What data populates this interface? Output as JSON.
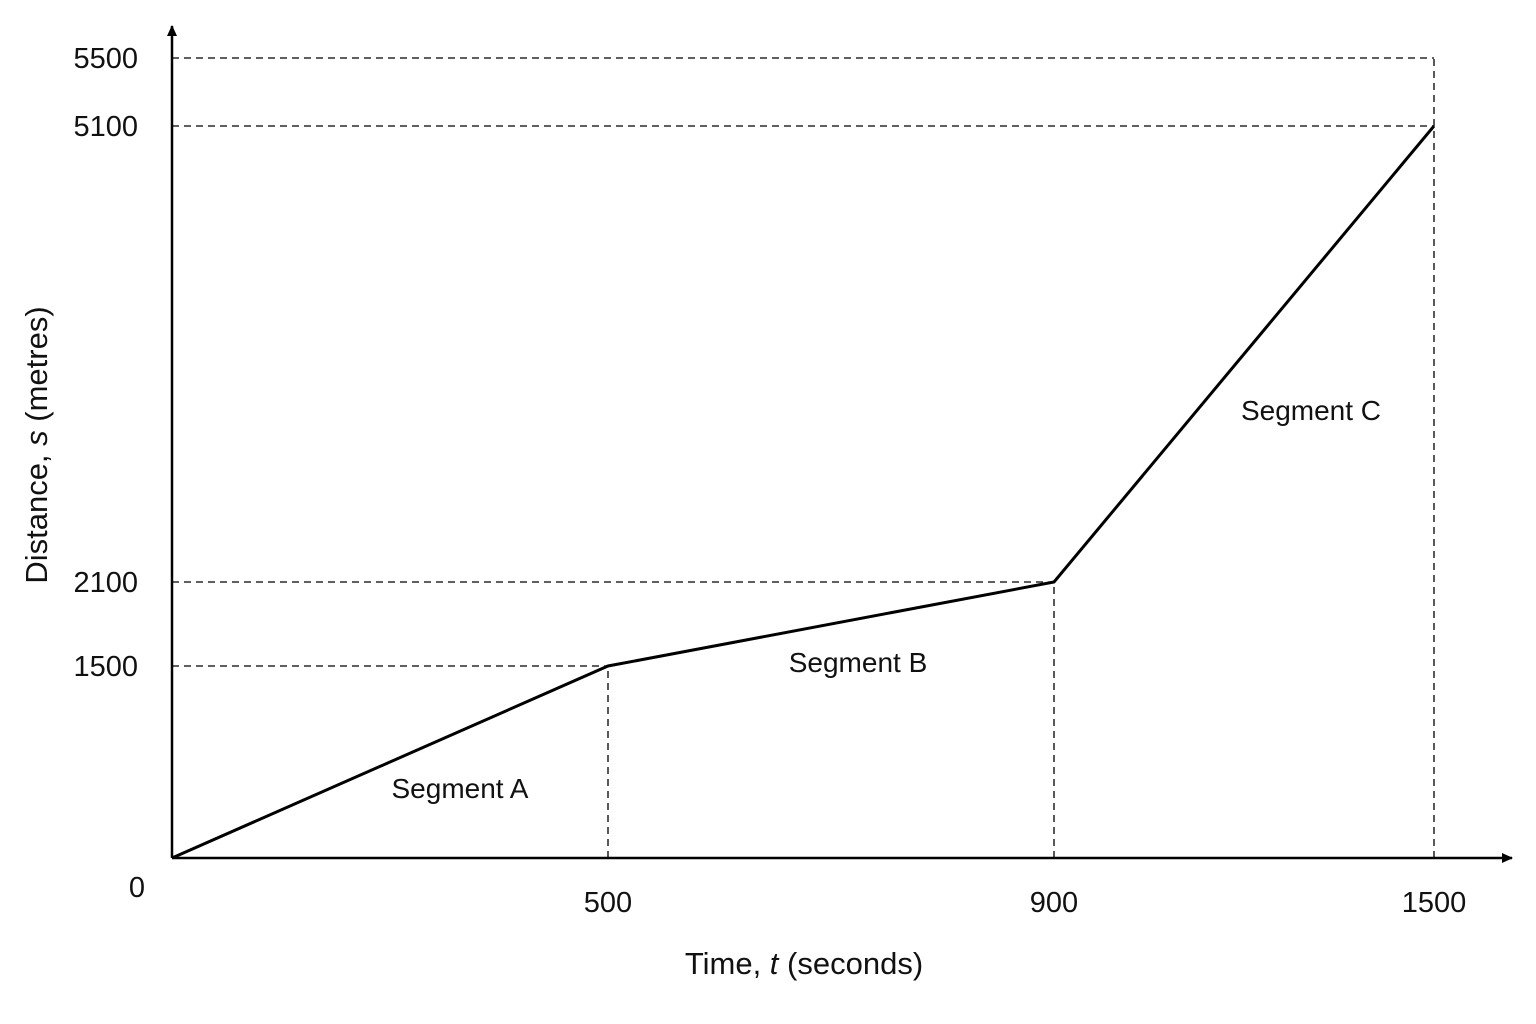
{
  "chart_data": {
    "type": "line",
    "xlabel": {
      "prefix": "Time, ",
      "var": "t",
      "suffix": " (seconds)"
    },
    "ylabel": {
      "prefix": "Distance, ",
      "var": "s",
      "suffix": " (metres)"
    },
    "xlim": [
      0,
      1500
    ],
    "ylim": [
      0,
      5500
    ],
    "origin_label": "0",
    "x_ticks": [
      500,
      900,
      1500
    ],
    "y_ticks": [
      1500,
      2100,
      5100,
      5500
    ],
    "x_tick_labels": [
      "500",
      "900",
      "1500"
    ],
    "y_tick_labels": [
      "1500",
      "2100",
      "5100",
      "5500"
    ],
    "grid": false,
    "reference_lines": "dashed",
    "series": [
      {
        "x": [
          0,
          500,
          900,
          1500
        ],
        "y": [
          0,
          1500,
          2100,
          5100
        ]
      }
    ],
    "annotations": [
      {
        "text": "Segment A"
      },
      {
        "text": "Segment B"
      },
      {
        "text": "Segment C"
      }
    ]
  }
}
